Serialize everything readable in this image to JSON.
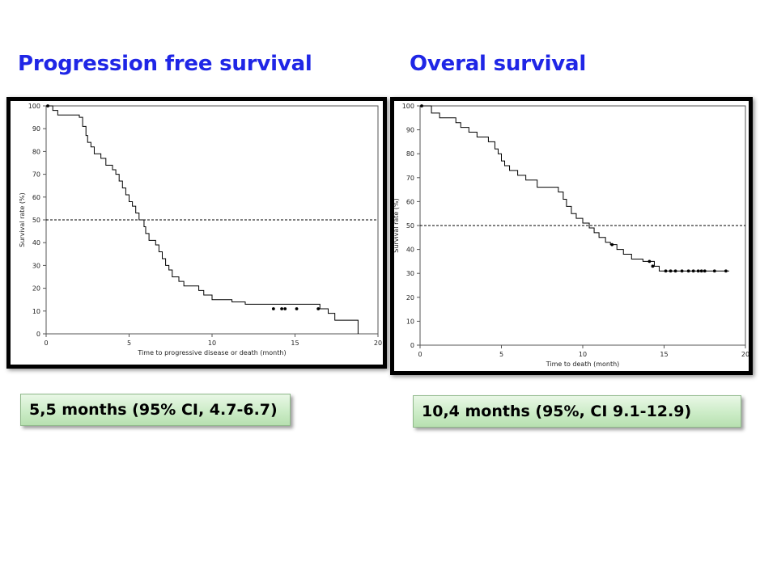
{
  "titles": {
    "left": "Progression free survival",
    "right": "Overal survival"
  },
  "medians": {
    "left": "5,5 months (95% CI, 4.7-6.7)",
    "right": "10,4 months (95%, CI 9.1-12.9)"
  },
  "colors": {
    "title": "#1f26e6",
    "curve": "#000000",
    "reference_line": "#000000",
    "box_fill": "#c9ebc4"
  },
  "chart_data": [
    {
      "type": "line",
      "subtype": "kaplan-meier step",
      "xlabel": "Time to progressive disease or death (month)",
      "ylabel": "Survival rate (%)",
      "xlim": [
        0,
        20
      ],
      "ylim": [
        0,
        100
      ],
      "x_ticks": [
        0,
        5,
        10,
        15,
        20
      ],
      "y_ticks": [
        0,
        10,
        20,
        30,
        40,
        50,
        60,
        70,
        80,
        90,
        100
      ],
      "reference_line_y": 50,
      "grid": false,
      "steps": [
        [
          0,
          100
        ],
        [
          0.4,
          98
        ],
        [
          0.7,
          96
        ],
        [
          2,
          95
        ],
        [
          2.2,
          91
        ],
        [
          2.4,
          87
        ],
        [
          2.5,
          84
        ],
        [
          2.7,
          82
        ],
        [
          2.9,
          79
        ],
        [
          3.3,
          77
        ],
        [
          3.6,
          74
        ],
        [
          4,
          72
        ],
        [
          4.2,
          70
        ],
        [
          4.4,
          67
        ],
        [
          4.6,
          64
        ],
        [
          4.8,
          61
        ],
        [
          5,
          58
        ],
        [
          5.2,
          56
        ],
        [
          5.4,
          53
        ],
        [
          5.6,
          50
        ],
        [
          5.9,
          47
        ],
        [
          6,
          44
        ],
        [
          6.2,
          41
        ],
        [
          6.6,
          39
        ],
        [
          6.8,
          36
        ],
        [
          7,
          33
        ],
        [
          7.2,
          30
        ],
        [
          7.4,
          28
        ],
        [
          7.6,
          25
        ],
        [
          8,
          23
        ],
        [
          8.3,
          21
        ],
        [
          9.2,
          19
        ],
        [
          9.5,
          17
        ],
        [
          10,
          15
        ],
        [
          11.2,
          14
        ],
        [
          12,
          13
        ],
        [
          16.5,
          11
        ],
        [
          17,
          9
        ],
        [
          17.4,
          6
        ],
        [
          18.8,
          6
        ],
        [
          18.8,
          0
        ]
      ],
      "censored": [
        [
          0.1,
          100
        ],
        [
          13.7,
          11
        ],
        [
          14.2,
          11
        ],
        [
          14.4,
          11
        ],
        [
          15.1,
          11
        ],
        [
          16.4,
          11
        ]
      ]
    },
    {
      "type": "line",
      "subtype": "kaplan-meier step",
      "xlabel": "Time to death (month)",
      "ylabel": "Survival rate (%)",
      "xlim": [
        0,
        20
      ],
      "ylim": [
        0,
        100
      ],
      "x_ticks": [
        0,
        5,
        10,
        15,
        20
      ],
      "y_ticks": [
        0,
        10,
        20,
        30,
        40,
        50,
        60,
        70,
        80,
        90,
        100
      ],
      "reference_line_y": 50,
      "grid": false,
      "steps": [
        [
          0,
          100
        ],
        [
          0.7,
          97
        ],
        [
          1.2,
          95
        ],
        [
          2.2,
          93
        ],
        [
          2.5,
          91
        ],
        [
          3,
          89
        ],
        [
          3.5,
          87
        ],
        [
          4.2,
          85
        ],
        [
          4.6,
          82
        ],
        [
          4.8,
          80
        ],
        [
          5,
          77
        ],
        [
          5.2,
          75
        ],
        [
          5.5,
          73
        ],
        [
          6,
          71
        ],
        [
          6.5,
          69
        ],
        [
          7.2,
          66
        ],
        [
          8.1,
          66
        ],
        [
          8.5,
          64
        ],
        [
          8.8,
          61
        ],
        [
          9,
          58
        ],
        [
          9.3,
          55
        ],
        [
          9.6,
          53
        ],
        [
          10,
          51
        ],
        [
          10.4,
          49
        ],
        [
          10.7,
          47
        ],
        [
          11,
          45
        ],
        [
          11.4,
          43
        ],
        [
          11.7,
          42
        ],
        [
          12.1,
          40
        ],
        [
          12.5,
          38
        ],
        [
          13,
          36
        ],
        [
          13.7,
          35
        ],
        [
          14.4,
          33
        ],
        [
          14.7,
          31
        ],
        [
          19,
          31
        ]
      ],
      "censored": [
        [
          0.1,
          100
        ],
        [
          11.8,
          42
        ],
        [
          14.1,
          35
        ],
        [
          14.3,
          33
        ],
        [
          15.1,
          31
        ],
        [
          15.4,
          31
        ],
        [
          15.7,
          31
        ],
        [
          16.1,
          31
        ],
        [
          16.5,
          31
        ],
        [
          16.8,
          31
        ],
        [
          17.1,
          31
        ],
        [
          17.3,
          31
        ],
        [
          17.5,
          31
        ],
        [
          18.1,
          31
        ],
        [
          18.8,
          31
        ]
      ]
    }
  ]
}
